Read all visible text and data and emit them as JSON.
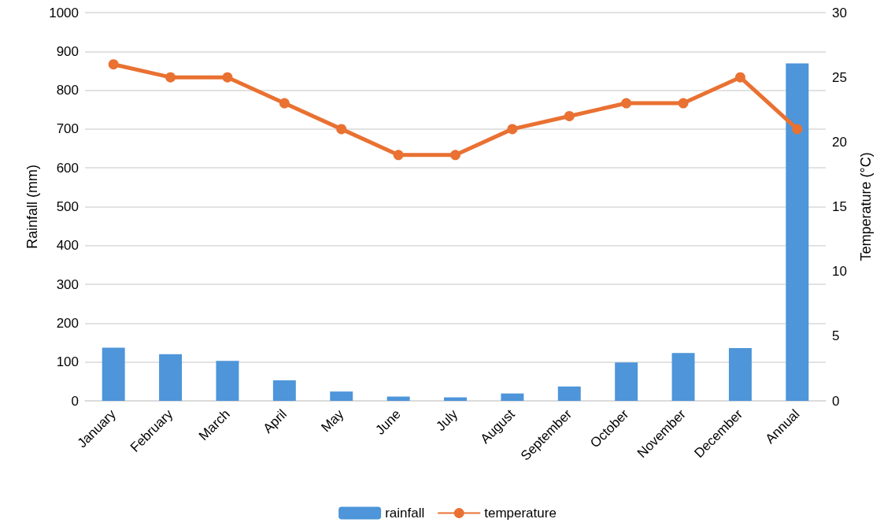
{
  "chart_data": {
    "type": "bar",
    "ylabel": "Rainfall (mm)",
    "y2label": "Temperature (°C)",
    "categories": [
      "January",
      "February",
      "March",
      "April",
      "May",
      "June",
      "July",
      "August",
      "September",
      "October",
      "November",
      "December",
      "Annual"
    ],
    "series": [
      {
        "name": "rainfall",
        "color": "#4e95d9",
        "values": [
          137,
          120,
          103,
          53,
          24,
          11,
          9,
          19,
          37,
          99,
          123,
          136,
          869
        ]
      },
      {
        "name": "temperature",
        "type": "line",
        "axis": "y2",
        "color": "#e97132",
        "marker": "circle",
        "values": [
          26,
          25,
          25,
          23,
          21,
          19,
          19,
          21,
          22,
          23,
          23,
          25,
          21
        ]
      }
    ],
    "ylim": [
      0,
      1000
    ],
    "yticks": [
      0,
      100,
      200,
      300,
      400,
      500,
      600,
      700,
      800,
      900,
      1000
    ],
    "y2lim": [
      0,
      30
    ],
    "y2ticks": [
      0,
      5,
      10,
      15,
      20,
      25,
      30
    ],
    "grid": "y",
    "legend": "bottom"
  }
}
